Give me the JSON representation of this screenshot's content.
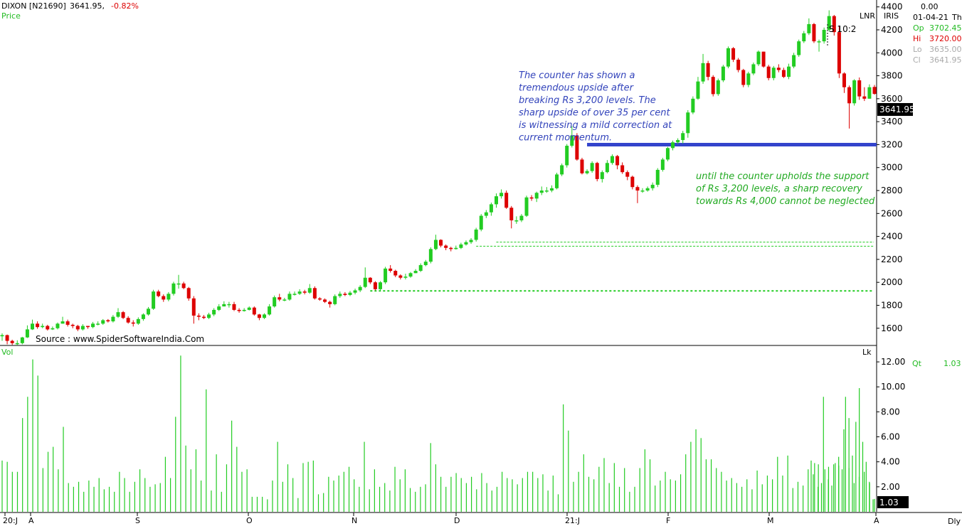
{
  "header": {
    "symbol": "DIXON [N21690]",
    "last": "3641.95,",
    "change": "-0.82%",
    "price_label": "Price",
    "lnr": "LNR",
    "iris": "IRIS"
  },
  "info_panel": {
    "value_top": "0.00",
    "date": "01-04-21",
    "day": "Th",
    "rows": [
      {
        "label": "Op",
        "value": "3702.45",
        "color": "#22bb22"
      },
      {
        "label": "Hi",
        "value": "3720.00",
        "color": "#dd0000"
      },
      {
        "label": "Lo",
        "value": "3635.00",
        "color": "#aaaaaa"
      },
      {
        "label": "Cl",
        "value": "3641.95",
        "color": "#aaaaaa"
      }
    ]
  },
  "volume_panel": {
    "label": "Vol",
    "unit": "Lk",
    "qt_label": "Qt",
    "qt_value": "1.03",
    "last_value": "1.03"
  },
  "source": "Source : www.SpiderSoftwareIndia.Com",
  "split_marker": "S 10:2",
  "last_price_tag": "3641.95",
  "timeframe": "Dly",
  "annotations": {
    "blue_note": [
      "The counter has shown a",
      "tremendous upside after",
      "breaking Rs 3,200 levels. The",
      "sharp upside of over 35 per cent",
      "is witnessing a mild correction at",
      "current momentum."
    ],
    "green_note": [
      "until the counter upholds the support",
      "of Rs 3,200 levels, a sharp recovery",
      "towards Rs 4,000 cannot be neglected"
    ]
  },
  "colors": {
    "up": "#22cc22",
    "down": "#dd0000",
    "support": "#3344cc",
    "blue_text": "#3344bb",
    "green_text": "#22aa22"
  },
  "chart_data": {
    "type": "candlestick",
    "price_axis": {
      "min": 1450,
      "max": 4460,
      "ticks": [
        1600,
        1800,
        2000,
        2200,
        2400,
        2600,
        2800,
        3000,
        3200,
        3400,
        3600,
        3800,
        4000,
        4200,
        4400
      ]
    },
    "volume_axis": {
      "min": 0,
      "max": 13.2,
      "ticks": [
        "2.00",
        "4.00",
        "6.00",
        "8.00",
        "10.00",
        "12.00"
      ]
    },
    "x_labels": [
      "20:J",
      "A",
      "S",
      "O",
      "N",
      "D",
      "21:J",
      "F",
      "M",
      "A"
    ],
    "support_level": 3200,
    "dotted_levels": [
      {
        "level": 2350,
        "from": 98
      },
      {
        "level": 2315,
        "from": 94
      },
      {
        "level": 1925,
        "from": 73
      }
    ],
    "closes": [
      1540,
      1490,
      1470,
      1470,
      1520,
      1590,
      1640,
      1610,
      1620,
      1590,
      1600,
      1640,
      1660,
      1630,
      1620,
      1590,
      1620,
      1610,
      1640,
      1640,
      1670,
      1660,
      1700,
      1740,
      1690,
      1650,
      1640,
      1680,
      1720,
      1770,
      1920,
      1880,
      1850,
      1900,
      1990,
      1990,
      1950,
      1860,
      1710,
      1700,
      1690,
      1720,
      1760,
      1790,
      1810,
      1810,
      1760,
      1750,
      1760,
      1780,
      1720,
      1690,
      1720,
      1790,
      1870,
      1850,
      1850,
      1900,
      1900,
      1920,
      1910,
      1950,
      1860,
      1850,
      1830,
      1810,
      1880,
      1900,
      1890,
      1910,
      1930,
      1960,
      2040,
      2000,
      1940,
      2000,
      2120,
      2100,
      2060,
      2040,
      2050,
      2080,
      2100,
      2150,
      2180,
      2290,
      2370,
      2320,
      2300,
      2290,
      2300,
      2330,
      2350,
      2370,
      2460,
      2580,
      2610,
      2680,
      2750,
      2780,
      2650,
      2540,
      2540,
      2580,
      2740,
      2730,
      2780,
      2800,
      2800,
      2820,
      2940,
      3020,
      3190,
      3280,
      3070,
      2950,
      2970,
      3040,
      2900,
      2960,
      3040,
      3100,
      3020,
      2960,
      2920,
      2830,
      2800,
      2800,
      2820,
      2850,
      2980,
      3070,
      3170,
      3220,
      3240,
      3300,
      3480,
      3600,
      3750,
      3910,
      3790,
      3640,
      3760,
      3880,
      4040,
      3940,
      3850,
      3720,
      3820,
      3900,
      4010,
      3880,
      3780,
      3870,
      3850,
      3790,
      3880,
      3980,
      4100,
      4170,
      4250,
      4100,
      4100,
      4200,
      4320,
      4180,
      3820,
      3700,
      3560,
      3760,
      3620,
      3600,
      3700,
      3642
    ],
    "highs": [
      1555,
      1545,
      1500,
      1495,
      1525,
      1625,
      1675,
      1660,
      1640,
      1630,
      1615,
      1650,
      1700,
      1675,
      1640,
      1630,
      1635,
      1620,
      1655,
      1660,
      1680,
      1680,
      1715,
      1775,
      1750,
      1705,
      1670,
      1695,
      1730,
      1785,
      1935,
      1935,
      1895,
      1915,
      2005,
      2065,
      2005,
      1960,
      1880,
      1730,
      1715,
      1735,
      1775,
      1810,
      1835,
      1830,
      1830,
      1775,
      1775,
      1790,
      1790,
      1725,
      1730,
      1810,
      1885,
      1900,
      1865,
      1920,
      1920,
      1940,
      1935,
      1985,
      1965,
      1870,
      1860,
      1840,
      1895,
      1920,
      1915,
      1925,
      1945,
      1975,
      2130,
      2045,
      2010,
      2010,
      2135,
      2150,
      2110,
      2070,
      2075,
      2090,
      2115,
      2165,
      2195,
      2305,
      2415,
      2375,
      2330,
      2310,
      2320,
      2345,
      2365,
      2385,
      2475,
      2595,
      2630,
      2695,
      2775,
      2810,
      2800,
      2665,
      2575,
      2595,
      2755,
      2760,
      2790,
      2835,
      2830,
      2845,
      2955,
      3035,
      3205,
      3360,
      3300,
      3085,
      2985,
      3055,
      3050,
      2975,
      3065,
      3115,
      3110,
      3045,
      2975,
      2930,
      2845,
      2820,
      2835,
      2870,
      2995,
      3085,
      3180,
      3235,
      3255,
      3320,
      3500,
      3620,
      3790,
      3990,
      3930,
      3805,
      3775,
      3895,
      4055,
      4050,
      3955,
      3860,
      3835,
      3915,
      4020,
      4010,
      3895,
      3885,
      3900,
      3870,
      3905,
      4000,
      4115,
      4190,
      4300,
      4260,
      4115,
      4220,
      4370,
      4330,
      4230,
      3830,
      3715,
      3770,
      3785,
      3700,
      3725,
      3720
    ],
    "lows": [
      1490,
      1460,
      1455,
      1455,
      1460,
      1515,
      1585,
      1595,
      1600,
      1580,
      1585,
      1590,
      1640,
      1615,
      1600,
      1575,
      1580,
      1595,
      1600,
      1625,
      1630,
      1650,
      1650,
      1690,
      1680,
      1640,
      1615,
      1630,
      1665,
      1710,
      1760,
      1870,
      1830,
      1835,
      1885,
      1945,
      1940,
      1840,
      1640,
      1670,
      1680,
      1680,
      1705,
      1750,
      1790,
      1780,
      1750,
      1735,
      1745,
      1755,
      1710,
      1670,
      1680,
      1710,
      1780,
      1835,
      1835,
      1840,
      1885,
      1890,
      1895,
      1900,
      1850,
      1840,
      1820,
      1780,
      1800,
      1865,
      1880,
      1880,
      1895,
      1915,
      1950,
      1985,
      1930,
      1930,
      1985,
      2085,
      2045,
      2025,
      2025,
      2040,
      2080,
      2090,
      2140,
      2165,
      2280,
      2305,
      2280,
      2270,
      2285,
      2290,
      2320,
      2335,
      2355,
      2445,
      2560,
      2580,
      2650,
      2730,
      2640,
      2470,
      2510,
      2525,
      2570,
      2710,
      2700,
      2760,
      2780,
      2785,
      2810,
      2925,
      3000,
      3175,
      3060,
      2940,
      2940,
      2955,
      2880,
      2870,
      2950,
      3025,
      2985,
      2945,
      2890,
      2810,
      2690,
      2780,
      2790,
      2800,
      2830,
      2965,
      3055,
      3150,
      3205,
      3210,
      3260,
      3465,
      3590,
      3730,
      3760,
      3620,
      3625,
      3745,
      3865,
      3920,
      3830,
      3700,
      3700,
      3805,
      3885,
      3870,
      3760,
      3760,
      3830,
      3780,
      3770,
      3865,
      3965,
      4085,
      4155,
      4085,
      4010,
      4080,
      4185,
      4150,
      3780,
      3650,
      3340,
      3540,
      3590,
      3580,
      3600,
      3635
    ],
    "volumes": [
      4.1,
      4.0,
      3.2,
      3.2,
      7.5,
      9.2,
      12.2,
      10.9,
      3.5,
      4.8,
      5.2,
      3.4,
      6.8,
      2.3,
      2.0,
      2.4,
      1.6,
      2.5,
      2.0,
      2.7,
      1.8,
      2.0,
      1.6,
      3.2,
      2.7,
      1.6,
      2.4,
      3.4,
      2.7,
      2.0,
      2.2,
      2.3,
      4.4,
      2.7,
      7.6,
      12.5,
      5.3,
      3.4,
      5.0,
      2.5,
      9.8,
      1.7,
      4.6,
      1.6,
      3.8,
      7.3,
      5.2,
      3.2,
      3.4,
      1.2,
      1.2,
      1.2,
      1.0,
      2.5,
      5.6,
      2.4,
      3.8,
      2.7,
      1.1,
      3.9,
      4.0,
      4.1,
      1.4,
      1.5,
      2.8,
      2.5,
      2.9,
      3.2,
      3.6,
      2.6,
      2.0,
      5.6,
      1.8,
      3.4,
      2.0,
      2.3,
      1.7,
      3.6,
      2.6,
      3.4,
      1.9,
      1.6,
      2.0,
      2.2,
      5.5,
      3.8,
      2.8,
      2.0,
      2.8,
      3.1,
      2.7,
      2.3,
      2.8,
      1.8,
      3.1,
      2.3,
      1.7,
      2.0,
      3.2,
      2.7,
      2.6,
      2.2,
      2.7,
      3.2,
      3.2,
      2.7,
      3.0,
      1.7,
      2.9,
      1.4,
      8.6,
      6.5,
      2.4,
      3.2,
      4.6,
      2.8,
      2.6,
      3.6,
      4.3,
      2.3,
      3.9,
      2.0,
      3.5,
      1.6,
      2.0,
      3.5,
      5.0,
      4.2,
      2.1,
      2.5,
      3.2,
      2.6,
      2.5,
      3.0,
      4.6,
      5.6,
      6.6,
      5.9,
      4.2,
      4.2,
      3.5,
      3.2,
      2.5,
      2.7,
      2.3,
      2.0,
      2.6,
      1.8,
      3.3,
      2.2,
      2.9,
      2.6,
      4.4,
      2.9,
      4.5,
      1.9,
      2.4,
      2.1,
      3.4,
      3.0,
      3.8,
      9.2,
      3.6,
      3.8,
      3.7,
      6.6,
      7.5,
      2.3,
      2.8,
      3.2,
      2.4,
      1.03
    ],
    "volume_tail": [
      4.1,
      3.9,
      2.0,
      2.3,
      3.4,
      2.6,
      2.1,
      3.9,
      4.4,
      3.4,
      9.2,
      3.5,
      4.5,
      7.2,
      9.9,
      5.6,
      4.0,
      2.3,
      1.0
    ]
  }
}
